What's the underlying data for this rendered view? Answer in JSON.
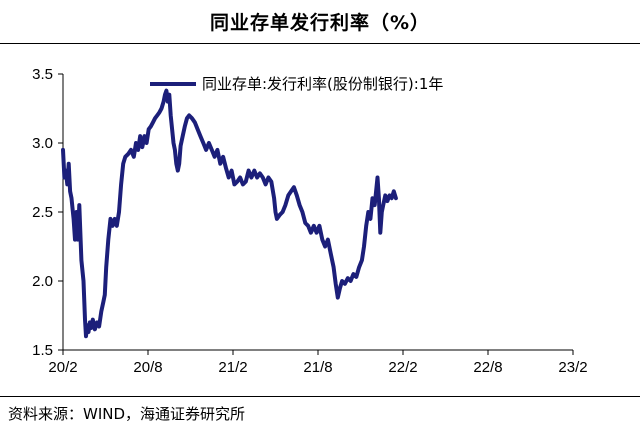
{
  "header": {
    "title": "同业存单发行利率（%）"
  },
  "footer": {
    "source": "资料来源：WIND，海通证券研究所"
  },
  "colors": {
    "series": "#1c1f7a",
    "axis": "#000000"
  },
  "chart_data": {
    "type": "line",
    "title": "同业存单发行利率（%）",
    "xlabel": "",
    "ylabel": "",
    "xlim": [
      "20/2",
      "23/2"
    ],
    "ylim": [
      1.5,
      3.5
    ],
    "y_ticks": [
      1.5,
      2.0,
      2.5,
      3.0,
      3.5
    ],
    "y_tick_labels": [
      "1.5",
      "2.0",
      "2.5",
      "3.0",
      "3.5"
    ],
    "x_ticks": [
      "20/2",
      "20/8",
      "21/2",
      "21/8",
      "22/2",
      "22/8",
      "23/2"
    ],
    "grid": false,
    "legend": "top-center",
    "series": [
      {
        "name": "同业存单:发行利率(股份制银行):1年",
        "x_unit": "months since 2020-02",
        "points": [
          [
            0.0,
            2.95
          ],
          [
            0.1,
            2.75
          ],
          [
            0.2,
            2.8
          ],
          [
            0.3,
            2.7
          ],
          [
            0.4,
            2.85
          ],
          [
            0.5,
            2.65
          ],
          [
            0.6,
            2.6
          ],
          [
            0.75,
            2.45
          ],
          [
            0.85,
            2.3
          ],
          [
            0.95,
            2.5
          ],
          [
            1.05,
            2.3
          ],
          [
            1.15,
            2.55
          ],
          [
            1.3,
            2.15
          ],
          [
            1.45,
            2.0
          ],
          [
            1.55,
            1.72
          ],
          [
            1.62,
            1.6
          ],
          [
            1.7,
            1.68
          ],
          [
            1.8,
            1.63
          ],
          [
            1.9,
            1.7
          ],
          [
            2.0,
            1.66
          ],
          [
            2.1,
            1.72
          ],
          [
            2.25,
            1.65
          ],
          [
            2.4,
            1.7
          ],
          [
            2.55,
            1.67
          ],
          [
            2.7,
            1.78
          ],
          [
            2.85,
            1.85
          ],
          [
            2.95,
            1.9
          ],
          [
            3.05,
            2.1
          ],
          [
            3.2,
            2.3
          ],
          [
            3.35,
            2.45
          ],
          [
            3.5,
            2.4
          ],
          [
            3.65,
            2.45
          ],
          [
            3.8,
            2.4
          ],
          [
            3.95,
            2.5
          ],
          [
            4.1,
            2.7
          ],
          [
            4.25,
            2.85
          ],
          [
            4.4,
            2.9
          ],
          [
            4.6,
            2.92
          ],
          [
            4.8,
            2.95
          ],
          [
            5.0,
            2.9
          ],
          [
            5.15,
            3.0
          ],
          [
            5.3,
            2.95
          ],
          [
            5.45,
            3.05
          ],
          [
            5.6,
            2.97
          ],
          [
            5.75,
            3.05
          ],
          [
            5.9,
            3.0
          ],
          [
            6.05,
            3.1
          ],
          [
            6.2,
            3.12
          ],
          [
            6.35,
            3.15
          ],
          [
            6.5,
            3.18
          ],
          [
            6.65,
            3.2
          ],
          [
            6.8,
            3.22
          ],
          [
            6.95,
            3.25
          ],
          [
            7.1,
            3.3
          ],
          [
            7.2,
            3.35
          ],
          [
            7.3,
            3.38
          ],
          [
            7.4,
            3.3
          ],
          [
            7.5,
            3.35
          ],
          [
            7.6,
            3.2
          ],
          [
            7.7,
            3.1
          ],
          [
            7.8,
            3.0
          ],
          [
            7.9,
            2.95
          ],
          [
            8.0,
            2.85
          ],
          [
            8.1,
            2.8
          ],
          [
            8.2,
            2.85
          ],
          [
            8.3,
            2.98
          ],
          [
            8.45,
            3.05
          ],
          [
            8.6,
            3.12
          ],
          [
            8.75,
            3.18
          ],
          [
            8.9,
            3.2
          ],
          [
            9.1,
            3.18
          ],
          [
            9.3,
            3.15
          ],
          [
            9.5,
            3.1
          ],
          [
            9.7,
            3.05
          ],
          [
            9.9,
            3.0
          ],
          [
            10.1,
            2.95
          ],
          [
            10.3,
            3.0
          ],
          [
            10.5,
            2.95
          ],
          [
            10.7,
            2.9
          ],
          [
            10.9,
            2.95
          ],
          [
            11.1,
            2.85
          ],
          [
            11.3,
            2.9
          ],
          [
            11.5,
            2.82
          ],
          [
            11.7,
            2.75
          ],
          [
            11.9,
            2.8
          ],
          [
            12.1,
            2.7
          ],
          [
            12.3,
            2.72
          ],
          [
            12.5,
            2.75
          ],
          [
            12.7,
            2.7
          ],
          [
            12.9,
            2.72
          ],
          [
            13.1,
            2.8
          ],
          [
            13.3,
            2.75
          ],
          [
            13.5,
            2.8
          ],
          [
            13.7,
            2.75
          ],
          [
            13.9,
            2.78
          ],
          [
            14.1,
            2.75
          ],
          [
            14.3,
            2.7
          ],
          [
            14.5,
            2.75
          ],
          [
            14.7,
            2.72
          ],
          [
            14.9,
            2.6
          ],
          [
            15.0,
            2.5
          ],
          [
            15.1,
            2.45
          ],
          [
            15.3,
            2.48
          ],
          [
            15.5,
            2.5
          ],
          [
            15.7,
            2.55
          ],
          [
            15.9,
            2.62
          ],
          [
            16.1,
            2.65
          ],
          [
            16.3,
            2.68
          ],
          [
            16.5,
            2.62
          ],
          [
            16.7,
            2.55
          ],
          [
            16.9,
            2.5
          ],
          [
            17.1,
            2.42
          ],
          [
            17.3,
            2.4
          ],
          [
            17.5,
            2.35
          ],
          [
            17.7,
            2.4
          ],
          [
            17.9,
            2.35
          ],
          [
            18.1,
            2.4
          ],
          [
            18.3,
            2.3
          ],
          [
            18.5,
            2.25
          ],
          [
            18.7,
            2.3
          ],
          [
            18.9,
            2.2
          ],
          [
            19.1,
            2.1
          ],
          [
            19.25,
            1.98
          ],
          [
            19.4,
            1.88
          ],
          [
            19.55,
            1.95
          ],
          [
            19.7,
            2.0
          ],
          [
            19.9,
            1.98
          ],
          [
            20.1,
            2.02
          ],
          [
            20.3,
            2.0
          ],
          [
            20.5,
            2.05
          ],
          [
            20.7,
            2.03
          ],
          [
            20.9,
            2.1
          ],
          [
            21.1,
            2.15
          ],
          [
            21.25,
            2.25
          ],
          [
            21.4,
            2.4
          ],
          [
            21.55,
            2.5
          ],
          [
            21.7,
            2.45
          ],
          [
            21.85,
            2.6
          ],
          [
            22.0,
            2.55
          ],
          [
            22.1,
            2.65
          ],
          [
            22.2,
            2.75
          ],
          [
            22.3,
            2.6
          ],
          [
            22.4,
            2.35
          ],
          [
            22.5,
            2.5
          ],
          [
            22.6,
            2.55
          ],
          [
            22.75,
            2.62
          ],
          [
            22.9,
            2.58
          ],
          [
            23.05,
            2.62
          ],
          [
            23.2,
            2.6
          ],
          [
            23.35,
            2.65
          ],
          [
            23.5,
            2.6
          ]
        ]
      }
    ]
  }
}
